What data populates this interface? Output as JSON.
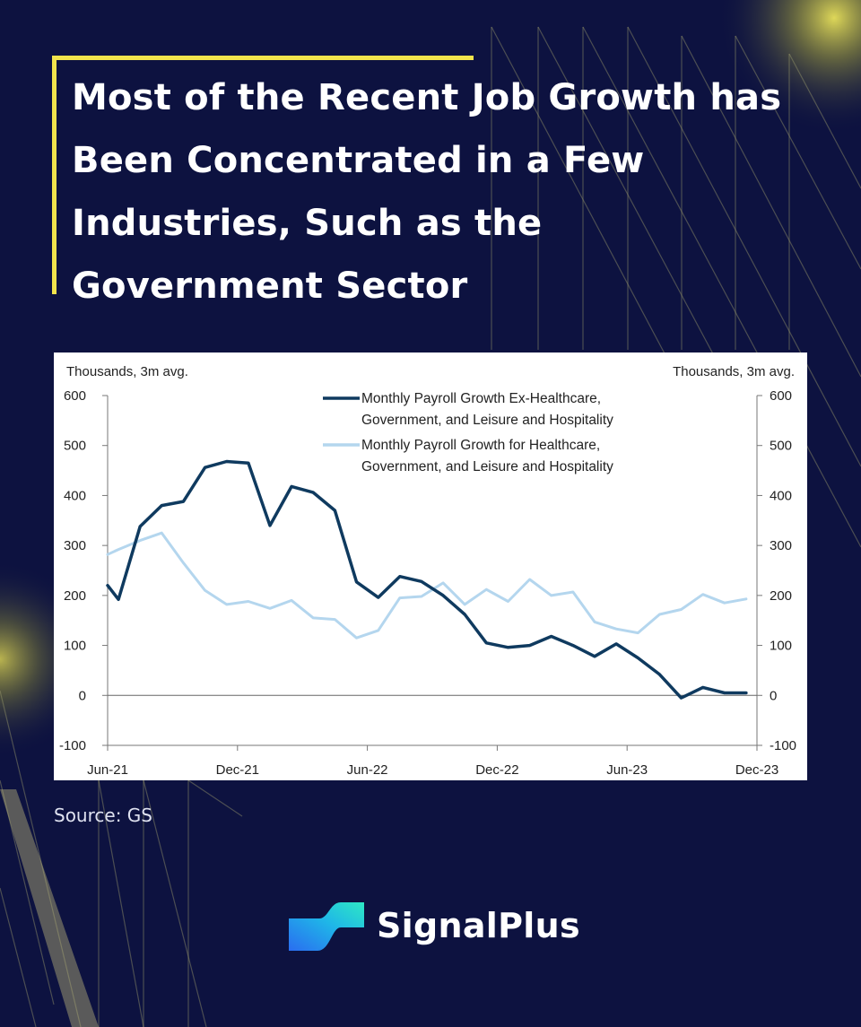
{
  "headline": "Most of the Recent Job Growth has Been Concentrated in a Few Industries, Such as the Government Sector",
  "source": "Source: GS",
  "brand": {
    "name": "SignalPlus",
    "logo_icon": "signalplus-logo-icon"
  },
  "colors": {
    "background": "#0d1240",
    "accent": "#f2e44c",
    "series_dark": "#0f3a5f",
    "series_light": "#b4d6ee"
  },
  "chart_data": {
    "type": "line",
    "left_axis_label": "Thousands, 3m avg.",
    "right_axis_label": "Thousands, 3m avg.",
    "ylim": [
      -100,
      600
    ],
    "yticks": [
      -100,
      0,
      100,
      200,
      300,
      400,
      500,
      600
    ],
    "ytick_labels": [
      "-100",
      "0",
      "100",
      "200",
      "300",
      "400",
      "500",
      "600"
    ],
    "xlim": [
      0,
      30
    ],
    "xticks": [
      0,
      6,
      12,
      18,
      24,
      30
    ],
    "xtick_labels": [
      "Jun-21",
      "Dec-21",
      "Jun-22",
      "Dec-22",
      "Jun-23",
      "Dec-23"
    ],
    "x": [
      0,
      0.5,
      1.5,
      2.5,
      3.5,
      4.5,
      5.5,
      6.5,
      7.5,
      8.5,
      9.5,
      10.5,
      11.5,
      12.5,
      13.5,
      14.5,
      15.5,
      16.5,
      17.5,
      18.5,
      19.5,
      20.5,
      21.5,
      22.5,
      23.5,
      24.5,
      25.5,
      26.5,
      27.5,
      28.5,
      29.5
    ],
    "series": [
      {
        "name": "Monthly Payroll Growth Ex-Healthcare, Government, and Leisure and Hospitality",
        "name_line1": "Monthly Payroll Growth Ex-Healthcare,",
        "name_line2": "Government, and Leisure and Hospitality",
        "color": "#0f3a5f",
        "values": [
          220,
          192,
          338,
          380,
          388,
          456,
          468,
          465,
          340,
          418,
          406,
          370,
          227,
          196,
          238,
          228,
          200,
          162,
          105,
          96,
          100,
          118,
          100,
          78,
          103,
          75,
          42,
          -5,
          16,
          5,
          5
        ]
      },
      {
        "name": "Monthly Payroll Growth for Healthcare, Government, and Leisure and Hospitality",
        "name_line1": "Monthly Payroll Growth for Healthcare,",
        "name_line2": "Government, and Leisure and Hospitality",
        "color": "#b4d6ee",
        "values": [
          282,
          292,
          310,
          325,
          265,
          210,
          182,
          188,
          174,
          190,
          155,
          152,
          115,
          130,
          195,
          198,
          225,
          182,
          212,
          188,
          232,
          200,
          207,
          147,
          133,
          125,
          162,
          172,
          202,
          185,
          193
        ]
      }
    ]
  }
}
